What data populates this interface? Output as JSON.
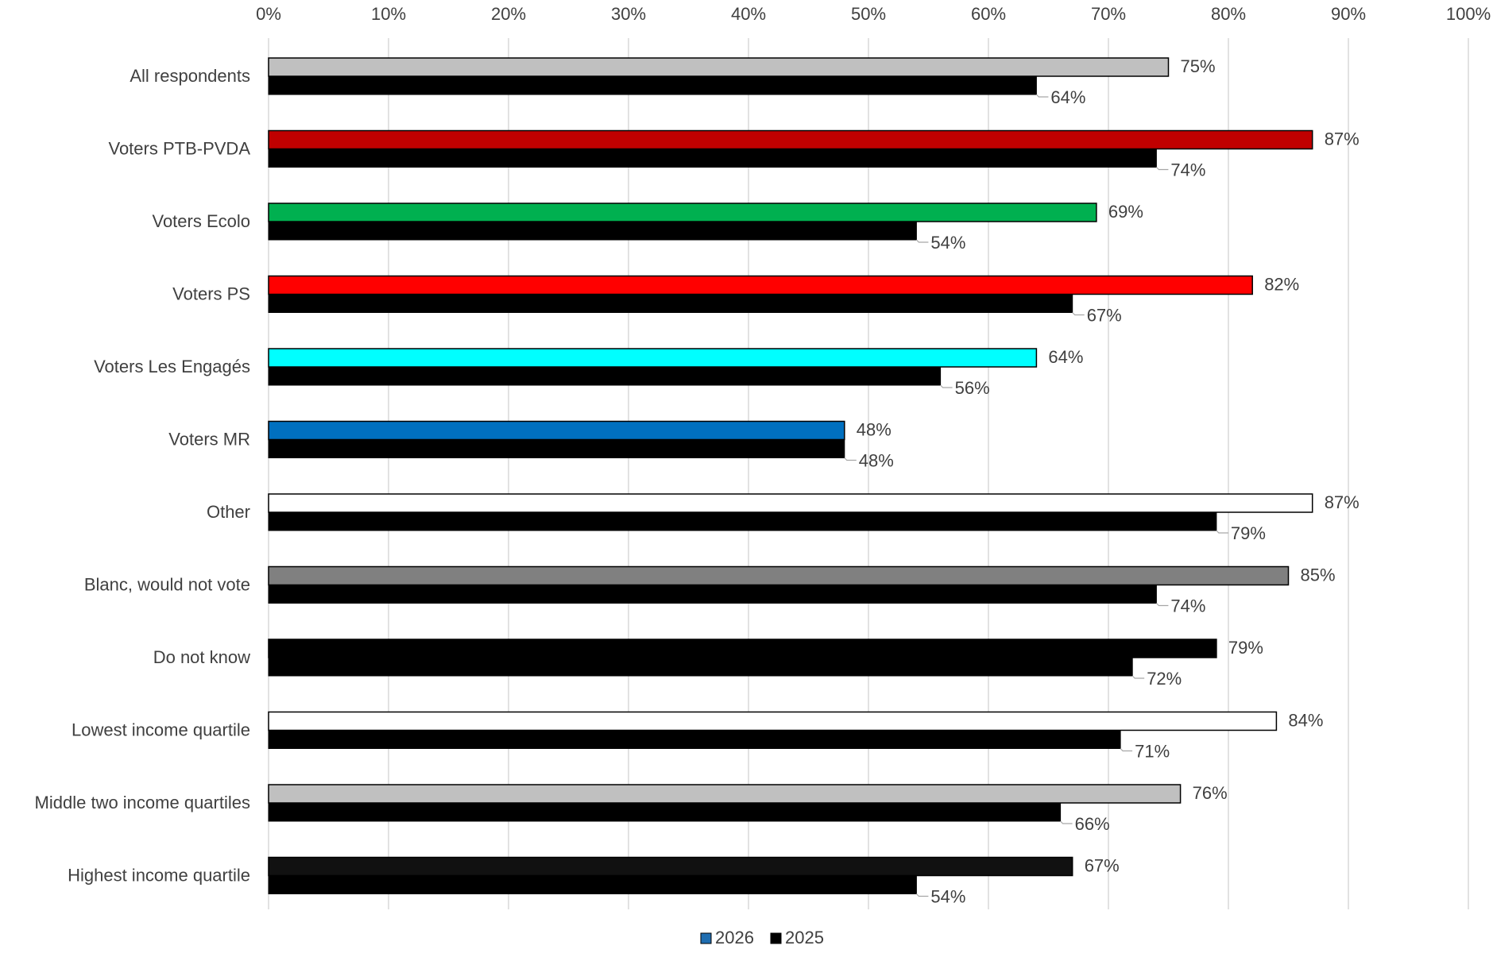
{
  "chart_data": {
    "type": "bar",
    "orientation": "horizontal",
    "title": "",
    "xlabel": "",
    "ylabel": "",
    "xlim": [
      0,
      100
    ],
    "x_unit": "%",
    "grid": "vertical gridlines at every 10%",
    "x_ticks": [
      "0%",
      "10%",
      "20%",
      "30%",
      "40%",
      "50%",
      "60%",
      "70%",
      "80%",
      "90%",
      "100%"
    ],
    "legend_position": "bottom",
    "legend": [
      {
        "label": "2026",
        "color": "#1f6db0"
      },
      {
        "label": "2025",
        "color": "#000000"
      }
    ],
    "categories": [
      "All respondents",
      "Voters PTB-PVDA",
      "Voters Ecolo",
      "Voters PS",
      "Voters Les Engagés",
      "Voters MR",
      "Other",
      "Blanc, would not vote",
      "Do not know",
      "Lowest income quartile",
      "Middle two income quartiles",
      "Highest income quartile"
    ],
    "series": [
      {
        "name": "2026",
        "values": [
          75,
          87,
          69,
          82,
          64,
          48,
          87,
          85,
          79,
          84,
          76,
          67
        ],
        "labels": [
          "75%",
          "87%",
          "69%",
          "82%",
          "64%",
          "48%",
          "87%",
          "85%",
          "79%",
          "84%",
          "76%",
          "67%"
        ],
        "colors": [
          "#c0c0c0",
          "#c00000",
          "#00b050",
          "#ff0000",
          "#00ffff",
          "#0070c0",
          "#ffffff",
          "#808080",
          "#000000",
          "#ffffff",
          "#c0c0c0",
          "#111111"
        ]
      },
      {
        "name": "2025",
        "values": [
          64,
          74,
          54,
          67,
          56,
          48,
          79,
          74,
          72,
          71,
          66,
          54
        ],
        "labels": [
          "64%",
          "74%",
          "54%",
          "67%",
          "56%",
          "48%",
          "79%",
          "74%",
          "72%",
          "71%",
          "66%",
          "54%"
        ],
        "colors": [
          "#000000",
          "#000000",
          "#000000",
          "#000000",
          "#000000",
          "#000000",
          "#000000",
          "#000000",
          "#000000",
          "#000000",
          "#000000",
          "#000000"
        ]
      }
    ]
  }
}
